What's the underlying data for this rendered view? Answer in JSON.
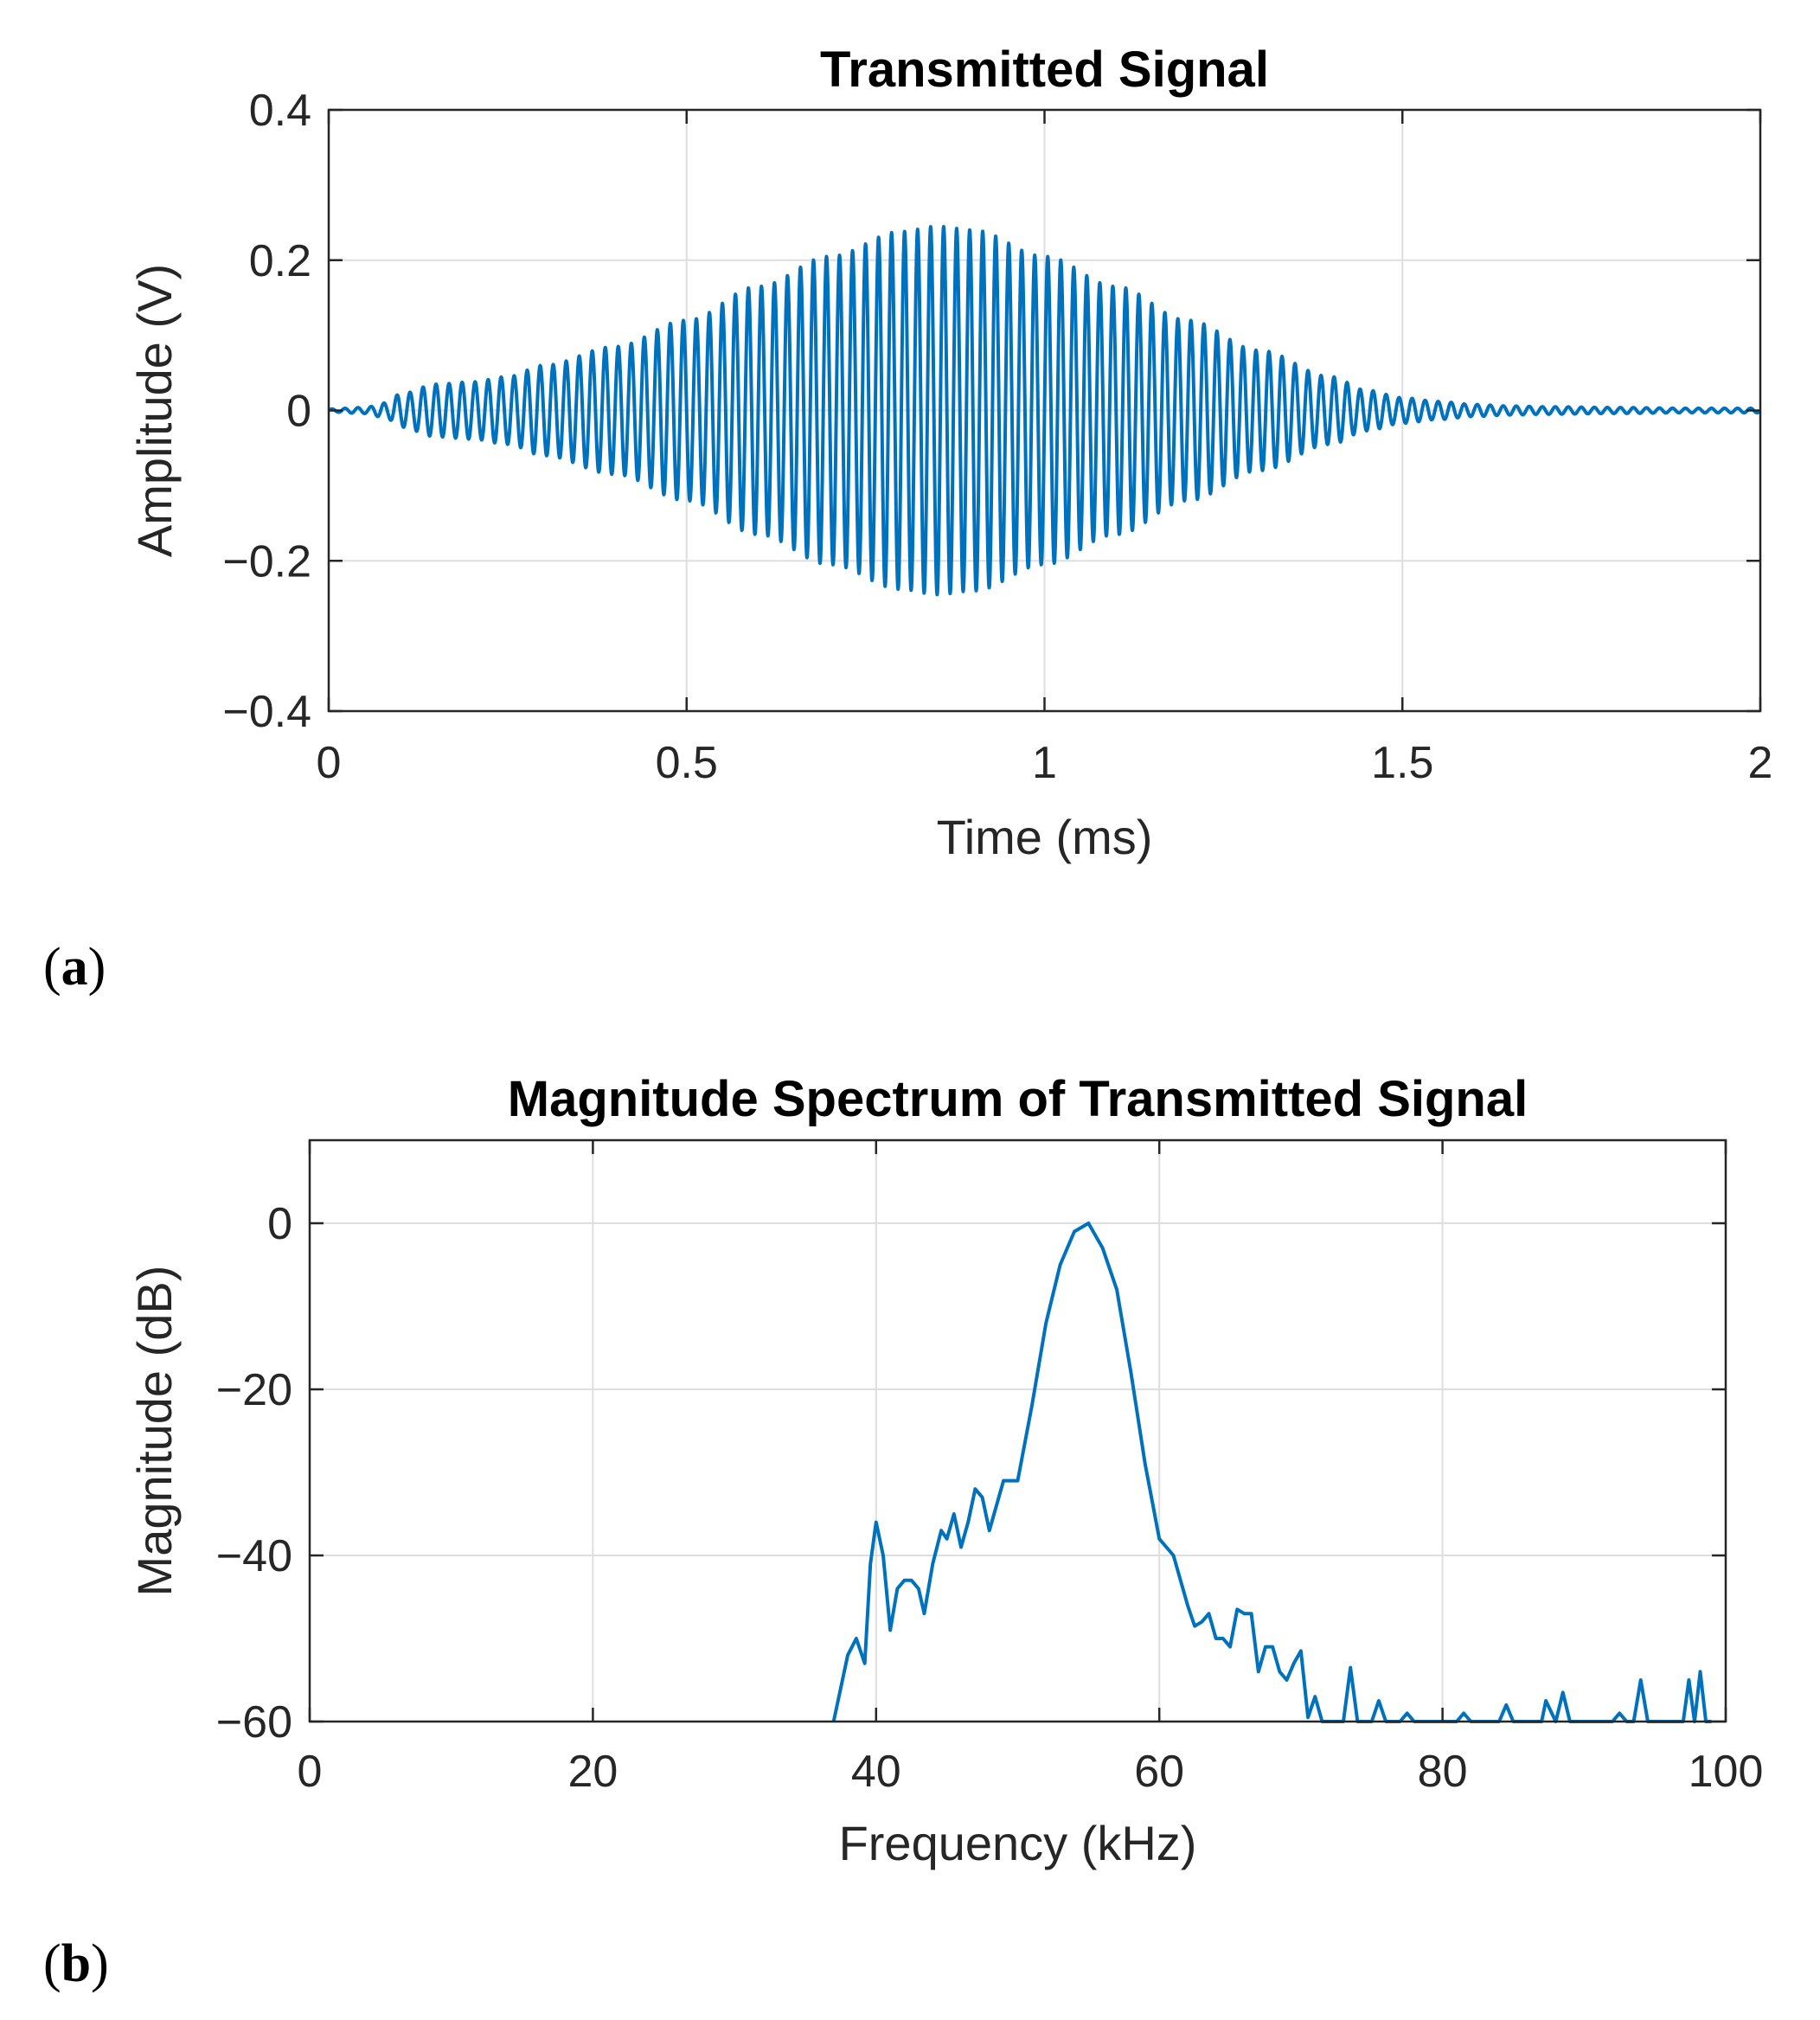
{
  "chart_data": [
    {
      "type": "line",
      "title": "Transmitted Signal",
      "xlabel": "Time (ms)",
      "ylabel": "Amplitude (V)",
      "xlim": [
        0,
        2
      ],
      "ylim": [
        -0.4,
        0.4
      ],
      "xticks": [
        0,
        0.5,
        1,
        1.5,
        2
      ],
      "xtick_labels": [
        "0",
        "0.5",
        "1",
        "1.5",
        "2"
      ],
      "yticks": [
        -0.4,
        -0.2,
        0,
        0.2,
        0.4
      ],
      "ytick_labels": [
        "−0.4",
        "−0.2",
        "0",
        "0.2",
        "0.4"
      ],
      "grid": true,
      "color": "#0072bd",
      "panel_label": "(a)",
      "panel_letter": "a",
      "signal": {
        "carrier_khz": 55,
        "envelope": {
          "t_ms": [
            0,
            0.05,
            0.08,
            0.1,
            0.15,
            0.2,
            0.25,
            0.3,
            0.4,
            0.5,
            0.6,
            0.7,
            0.8,
            0.85,
            0.9,
            1.0,
            1.1,
            1.2,
            1.3,
            1.4,
            1.45,
            1.5,
            1.55,
            1.6,
            1.65,
            1.7,
            1.8,
            1.9,
            2.0
          ],
          "amp_v": [
            0.002,
            0.004,
            0.01,
            0.022,
            0.035,
            0.038,
            0.045,
            0.06,
            0.085,
            0.12,
            0.165,
            0.205,
            0.238,
            0.245,
            0.24,
            0.205,
            0.165,
            0.12,
            0.08,
            0.045,
            0.027,
            0.017,
            0.012,
            0.008,
            0.006,
            0.005,
            0.004,
            0.003,
            0.003
          ]
        }
      }
    },
    {
      "type": "line",
      "title": "Magnitude Spectrum of Transmitted Signal",
      "xlabel": "Frequency (kHz)",
      "ylabel": "Magnitude (dB)",
      "xlim": [
        0,
        100
      ],
      "ylim": [
        -60,
        10
      ],
      "xticks": [
        0,
        20,
        40,
        60,
        80,
        100
      ],
      "xtick_labels": [
        "0",
        "20",
        "40",
        "60",
        "80",
        "100"
      ],
      "yticks": [
        -60,
        -40,
        -20,
        0
      ],
      "ytick_labels": [
        "−60",
        "−40",
        "−20",
        "0"
      ],
      "grid": true,
      "color": "#0072bd",
      "panel_label": "(b)",
      "panel_letter": "b",
      "x": [
        37,
        38,
        38.6,
        39.2,
        39.6,
        40,
        40.5,
        41,
        41.5,
        42,
        42.5,
        43,
        43.4,
        44,
        44.6,
        45,
        45.5,
        46,
        46.5,
        47,
        47.5,
        48,
        49,
        50,
        51,
        52,
        53,
        54,
        55,
        56,
        57,
        58,
        59,
        60,
        61,
        62,
        62.5,
        63,
        63.5,
        64,
        64.5,
        65,
        65.5,
        66,
        66.5,
        67,
        67.5,
        68,
        68.5,
        69,
        69.5,
        70,
        70.5,
        71,
        71.5,
        72,
        73,
        73.5,
        74,
        75,
        75.5,
        76,
        77,
        77.5,
        78,
        79,
        80,
        81,
        81.5,
        82,
        83,
        84,
        84.5,
        85,
        86,
        87,
        87.3,
        88,
        88.5,
        89,
        89.5,
        90,
        91,
        92,
        92.5,
        93,
        93.5,
        94,
        94.5,
        95,
        96,
        97,
        97.4,
        97.8,
        98.2,
        98.6,
        99
      ],
      "y": [
        -60,
        -52,
        -50,
        -53,
        -41,
        -36,
        -40,
        -49,
        -44,
        -43,
        -43,
        -44,
        -47,
        -41,
        -37,
        -38,
        -35,
        -39,
        -36,
        -32,
        -33,
        -37,
        -31,
        -31,
        -22,
        -12,
        -5,
        -1,
        0,
        -3,
        -8,
        -18,
        -29,
        -38,
        -40,
        -46,
        -48.5,
        -48,
        -47,
        -50,
        -50,
        -51,
        -46.5,
        -47,
        -47,
        -54,
        -51,
        -51,
        -54,
        -55,
        -53,
        -51.5,
        -59.5,
        -57,
        -60,
        -60,
        -60,
        -53.5,
        -60,
        -60,
        -57.5,
        -60,
        -60,
        -59,
        -60,
        -60,
        -60,
        -60,
        -59,
        -60,
        -60,
        -60,
        -58,
        -60,
        -60,
        -60,
        -57.5,
        -60,
        -56.5,
        -60,
        -60,
        -60,
        -60,
        -60,
        -59,
        -60,
        -60,
        -55,
        -60,
        -60,
        -60,
        -60,
        -55,
        -60,
        -54,
        -60,
        -60
      ]
    }
  ]
}
